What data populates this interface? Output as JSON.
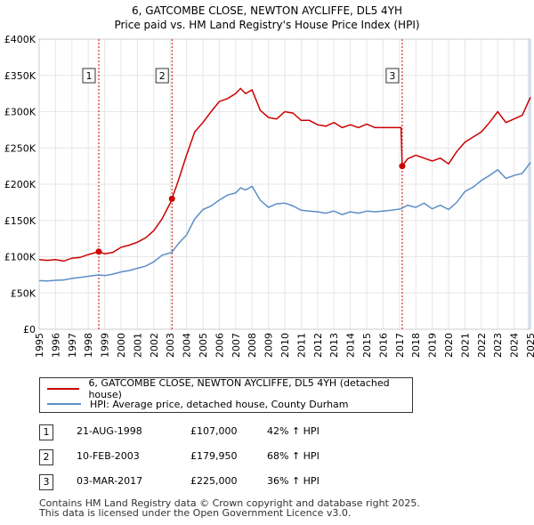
{
  "title_line1": "6, GATCOMBE CLOSE, NEWTON AYCLIFFE, DL5 4YH",
  "title_line2": "Price paid vs. HM Land Registry's House Price Index (HPI)",
  "colors": {
    "property": "#cc0000",
    "hpi": "#5b8ec9",
    "shade": "#dde6f3",
    "marker_line": "#cc0000",
    "grid": "#e6e6e6"
  },
  "legend": {
    "property_label": "6, GATCOMBE CLOSE, NEWTON AYCLIFFE, DL5 4YH (detached house)",
    "hpi_label": "HPI: Average price, detached house, County Durham"
  },
  "sales": [
    {
      "num": "1",
      "date": "21-AUG-1998",
      "price": "£107,000",
      "hpi": "42% ↑ HPI",
      "year": 1998.64,
      "value": 107000
    },
    {
      "num": "2",
      "date": "10-FEB-2003",
      "price": "£179,950",
      "hpi": "68% ↑ HPI",
      "year": 2003.11,
      "value": 179950
    },
    {
      "num": "3",
      "date": "03-MAR-2017",
      "price": "£225,000",
      "hpi": "36% ↑ HPI",
      "year": 2017.17,
      "value": 225000
    }
  ],
  "footer_line1": "Contains HM Land Registry data © Crown copyright and database right 2025.",
  "footer_line2": "This data is licensed under the Open Government Licence v3.0.",
  "chart_data": {
    "type": "line",
    "title": "6, GATCOMBE CLOSE, NEWTON AYCLIFFE, DL5 4YH",
    "subtitle": "Price paid vs. HM Land Registry's House Price Index (HPI)",
    "xlabel": "",
    "ylabel": "",
    "xlim": [
      1995,
      2025
    ],
    "ylim": [
      0,
      400000
    ],
    "x_ticks": [
      "1995",
      "1996",
      "1997",
      "1998",
      "1999",
      "2000",
      "2001",
      "2002",
      "2003",
      "2004",
      "2005",
      "2006",
      "2007",
      "2008",
      "2009",
      "2010",
      "2011",
      "2012",
      "2013",
      "2014",
      "2015",
      "2016",
      "2017",
      "2018",
      "2019",
      "2020",
      "2021",
      "2022",
      "2023",
      "2024",
      "2025"
    ],
    "y_ticks": [
      {
        "value": 0,
        "label": "£0"
      },
      {
        "value": 50000,
        "label": "£50K"
      },
      {
        "value": 100000,
        "label": "£100K"
      },
      {
        "value": 150000,
        "label": "£150K"
      },
      {
        "value": 200000,
        "label": "£200K"
      },
      {
        "value": 250000,
        "label": "£250K"
      },
      {
        "value": 300000,
        "label": "£300K"
      },
      {
        "value": 350000,
        "label": "£350K"
      },
      {
        "value": 400000,
        "label": "£400K"
      }
    ],
    "grid": true,
    "series": [
      {
        "name": "6, GATCOMBE CLOSE, NEWTON AYCLIFFE, DL5 4YH (detached house)",
        "x": [
          1995,
          1995.5,
          1996,
          1996.5,
          1997,
          1997.5,
          1998,
          1998.64,
          1999,
          1999.5,
          2000,
          2000.5,
          2001,
          2001.5,
          2002,
          2002.5,
          2003.1,
          2003.11,
          2003.5,
          2004,
          2004.5,
          2005,
          2005.5,
          2006,
          2006.5,
          2007,
          2007.3,
          2007.6,
          2008,
          2008.5,
          2009,
          2009.5,
          2010,
          2010.5,
          2011,
          2011.5,
          2012,
          2012.5,
          2013,
          2013.5,
          2014,
          2014.5,
          2015,
          2015.5,
          2016,
          2016.5,
          2017.1,
          2017.17,
          2017.5,
          2018,
          2018.5,
          2019,
          2019.5,
          2020,
          2020.5,
          2021,
          2021.5,
          2022,
          2022.5,
          2023,
          2023.5,
          2024,
          2024.5,
          2025
        ],
        "values": [
          96000,
          95000,
          96000,
          94000,
          98000,
          99000,
          103000,
          107000,
          104000,
          106000,
          113000,
          116000,
          120000,
          126000,
          136000,
          152000,
          178000,
          179950,
          205000,
          240000,
          272000,
          285000,
          300000,
          314000,
          318000,
          325000,
          332000,
          325000,
          330000,
          302000,
          292000,
          290000,
          300000,
          298000,
          288000,
          288000,
          282000,
          280000,
          285000,
          278000,
          282000,
          278000,
          283000,
          278000,
          278000,
          278000,
          278000,
          225000,
          235000,
          240000,
          236000,
          232000,
          236000,
          228000,
          245000,
          258000,
          265000,
          272000,
          285000,
          300000,
          285000,
          290000,
          295000,
          320000
        ],
        "color": "#cc0000"
      },
      {
        "name": "HPI: Average price, detached house, County Durham",
        "x": [
          1995,
          1995.5,
          1996,
          1996.5,
          1997,
          1997.5,
          1998,
          1998.64,
          1999,
          1999.5,
          2000,
          2000.5,
          2001,
          2001.5,
          2002,
          2002.5,
          2003.1,
          2003.5,
          2004,
          2004.5,
          2005,
          2005.5,
          2006,
          2006.5,
          2007,
          2007.3,
          2007.6,
          2008,
          2008.5,
          2009,
          2009.5,
          2010,
          2010.5,
          2011,
          2011.5,
          2012,
          2012.5,
          2013,
          2013.5,
          2014,
          2014.5,
          2015,
          2015.5,
          2016,
          2016.5,
          2017.1,
          2017.5,
          2018,
          2018.5,
          2019,
          2019.5,
          2020,
          2020.5,
          2021,
          2021.5,
          2022,
          2022.5,
          2023,
          2023.5,
          2024,
          2024.5,
          2025
        ],
        "values": [
          67000,
          66500,
          67500,
          68000,
          70000,
          71500,
          73000,
          75000,
          74000,
          76000,
          79000,
          81000,
          84000,
          87000,
          93000,
          102000,
          106000,
          118000,
          130000,
          152000,
          165000,
          170000,
          178000,
          185000,
          188000,
          195000,
          192000,
          197000,
          178000,
          168000,
          173000,
          174000,
          170000,
          164000,
          163000,
          162000,
          160000,
          163000,
          158000,
          162000,
          160000,
          163000,
          162000,
          163000,
          164000,
          166000,
          171000,
          168000,
          174000,
          166000,
          171000,
          165000,
          175000,
          190000,
          196000,
          205000,
          212000,
          220000,
          208000,
          212000,
          215000,
          230000
        ],
        "color": "#5b8ec9"
      }
    ],
    "annotations": [
      {
        "label": "1",
        "year": 1998.64
      },
      {
        "label": "2",
        "year": 2003.11
      },
      {
        "label": "3",
        "year": 2017.17
      }
    ],
    "shaded_region": {
      "from": 2024.83,
      "to": 2025
    }
  }
}
